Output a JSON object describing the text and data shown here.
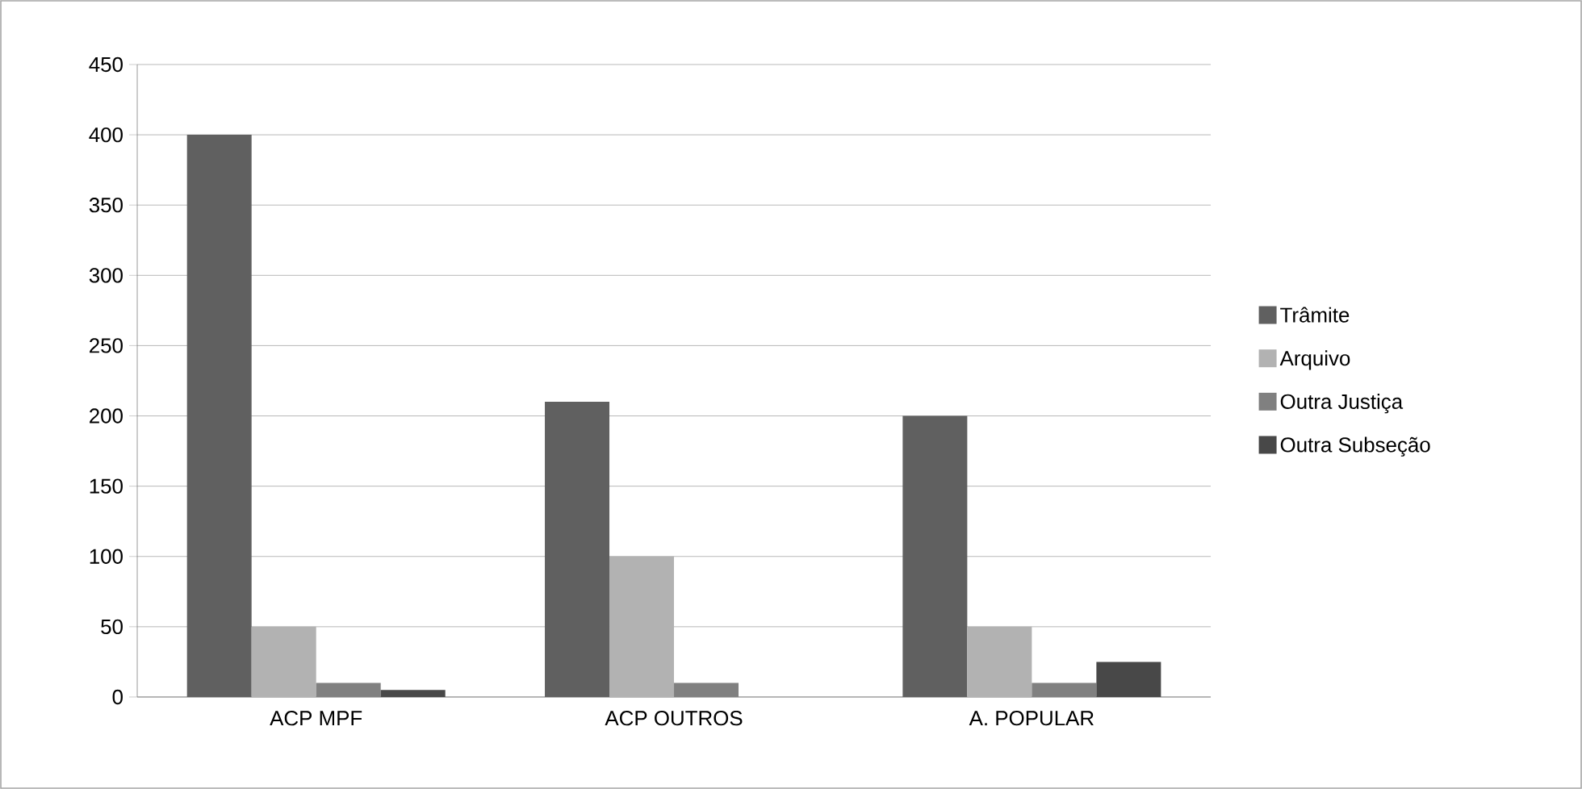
{
  "chart_data": {
    "type": "bar",
    "categories": [
      "ACP MPF",
      "ACP OUTROS",
      "A. POPULAR"
    ],
    "series": [
      {
        "name": "Trâmite",
        "color": "#606060",
        "values": [
          400,
          210,
          200
        ]
      },
      {
        "name": "Arquivo",
        "color": "#b2b2b2",
        "values": [
          50,
          100,
          50
        ]
      },
      {
        "name": "Outra Justiça",
        "color": "#808080",
        "values": [
          10,
          10,
          10
        ]
      },
      {
        "name": "Outra Subseção",
        "color": "#484848",
        "values": [
          5,
          0,
          25
        ]
      }
    ],
    "ylim": [
      0,
      450
    ],
    "yticks": [
      0,
      50,
      100,
      150,
      200,
      250,
      300,
      350,
      400,
      450
    ],
    "grid": "y",
    "legend": "right"
  }
}
